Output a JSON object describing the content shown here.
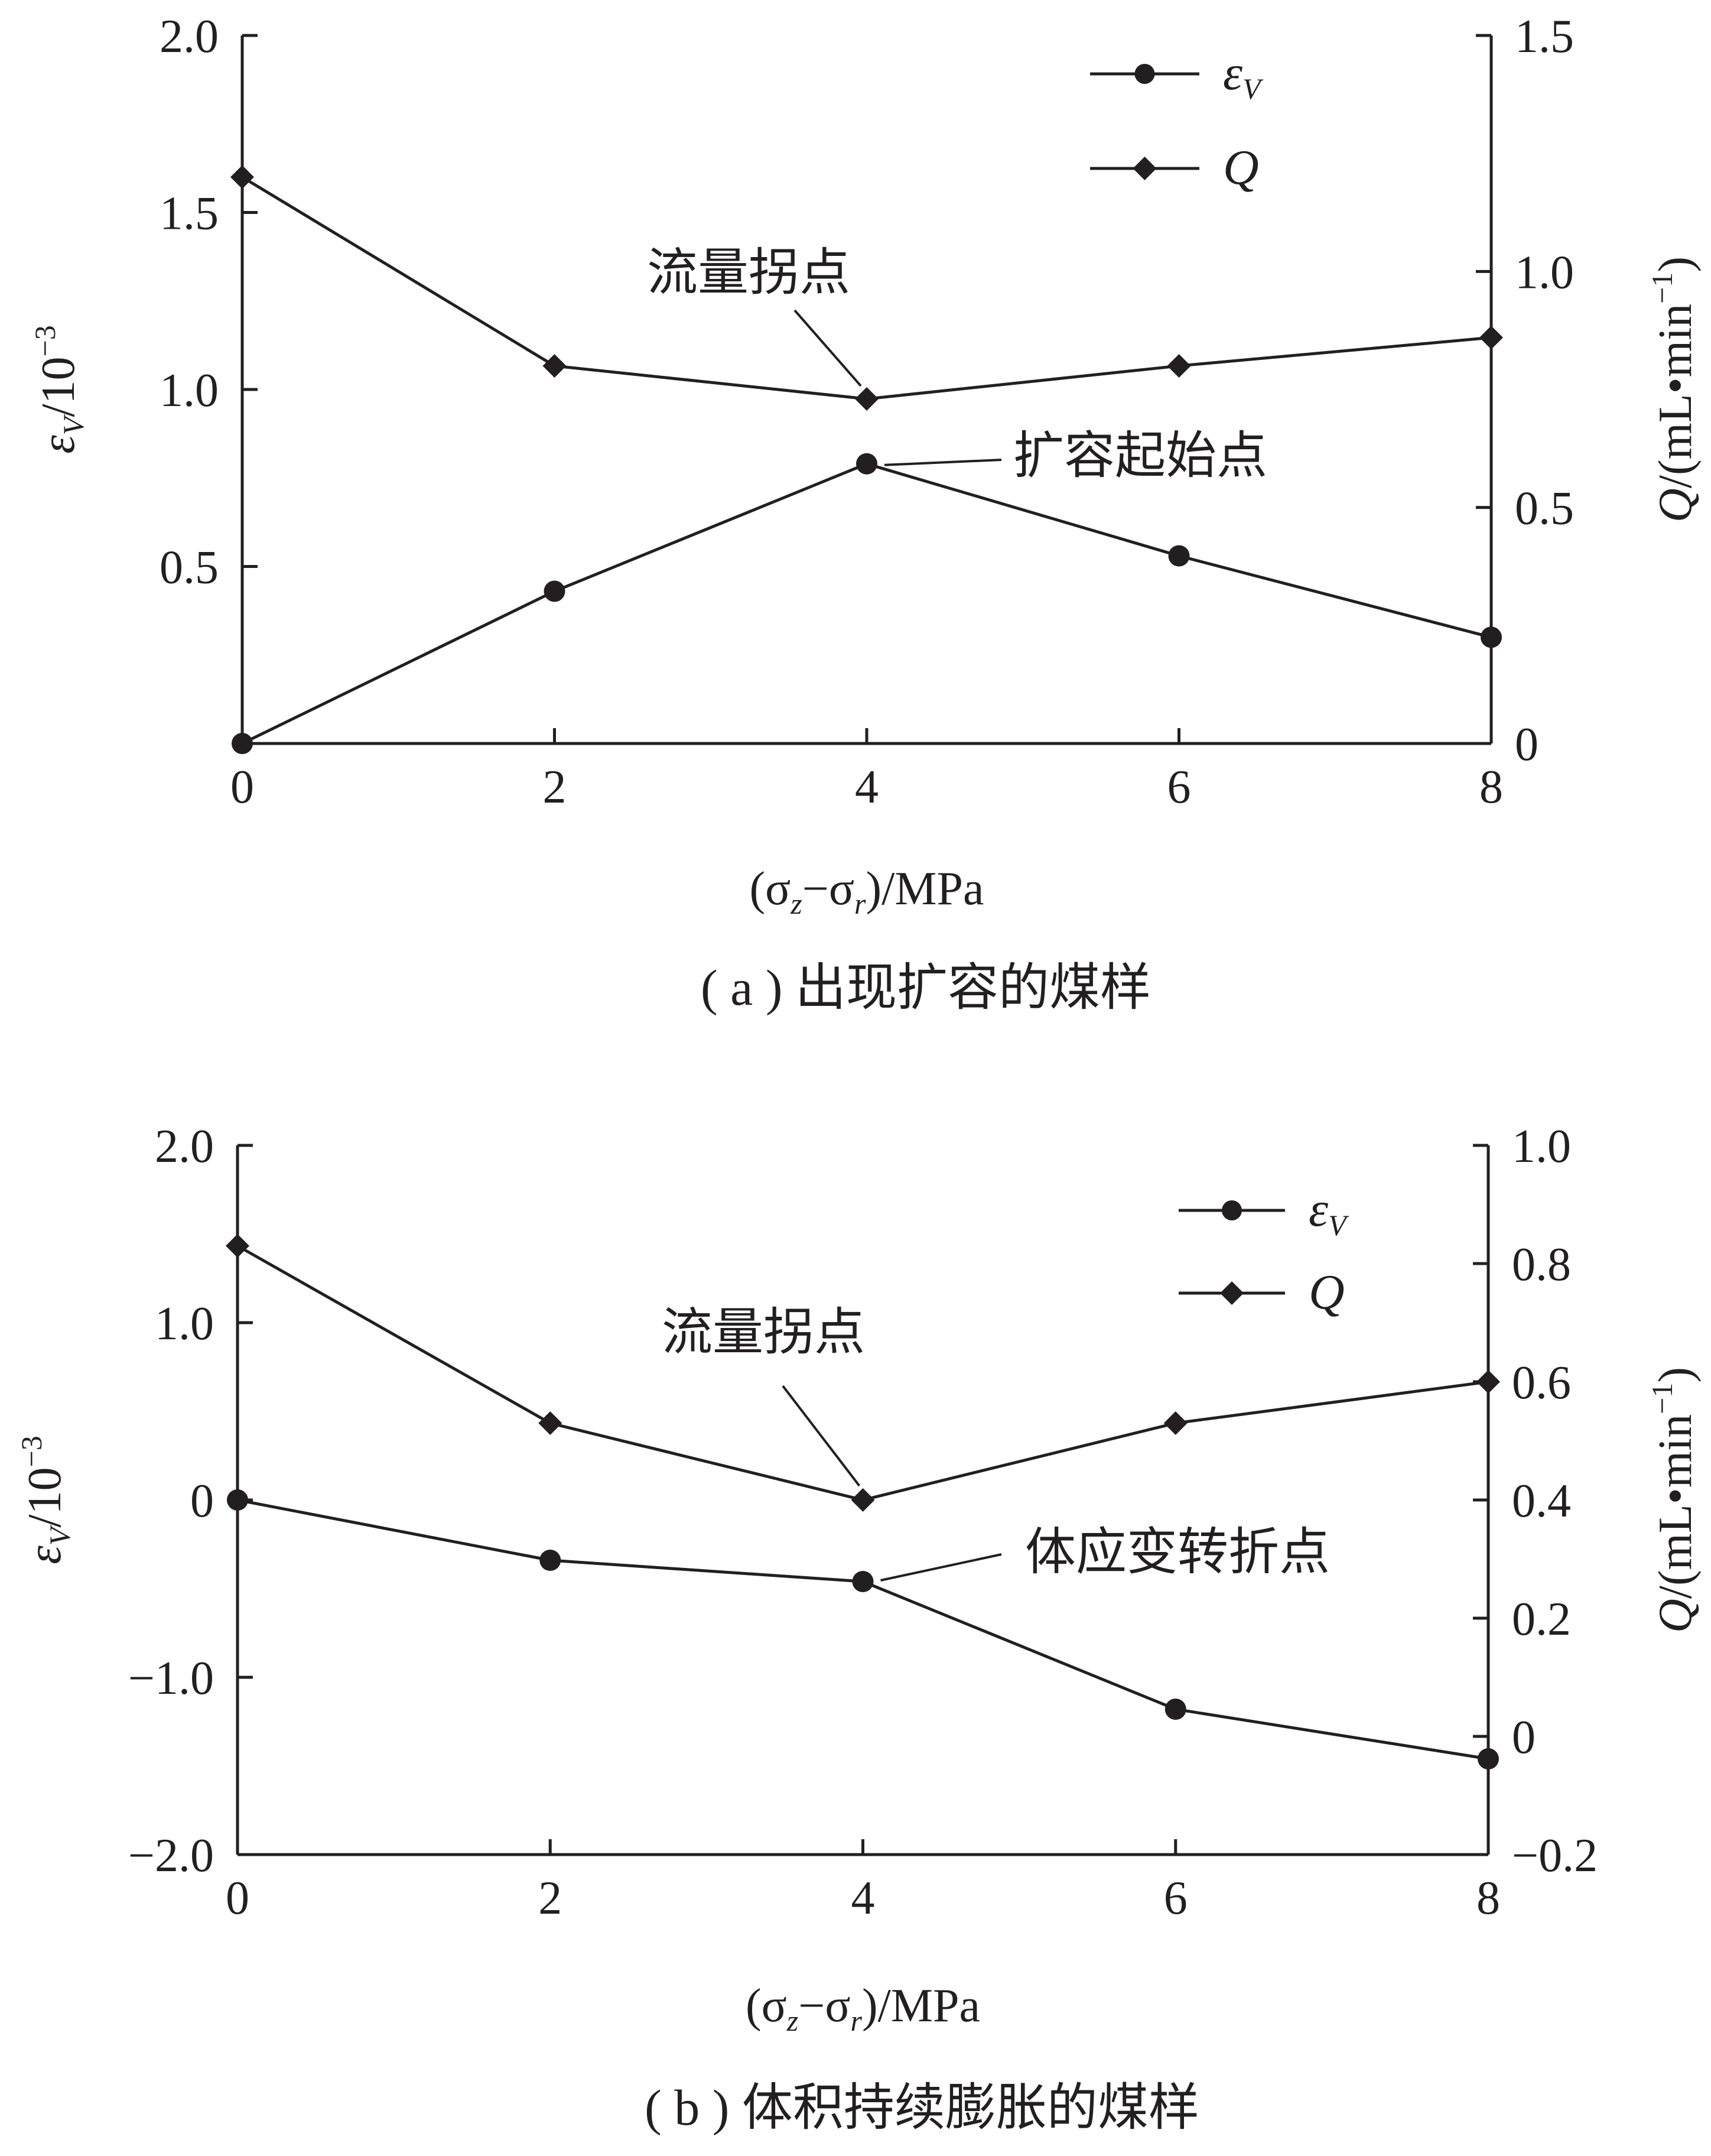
{
  "chart_data": [
    {
      "type": "line",
      "caption": "( a ) 出现扩容的煤样",
      "x": [
        0,
        2,
        4,
        6,
        8
      ],
      "xticks": [
        "0",
        "2",
        "4",
        "6",
        "8"
      ],
      "xlim": [
        0,
        8
      ],
      "y_left": {
        "label_main": "ε",
        "label_sub": "V",
        "label_unit": "/10",
        "label_exp": "−3",
        "lim": [
          0,
          2.0
        ],
        "ticks": [
          0.5,
          1.0,
          1.5,
          2.0
        ],
        "tick_labels": [
          "0.5",
          "1.0",
          "1.5",
          "2.0"
        ]
      },
      "y_right": {
        "label_main": "Q",
        "label_unit": "/(mL•min",
        "label_exp": "−1",
        "label_close": ")",
        "lim": [
          0,
          1.5
        ],
        "ticks": [
          0,
          0.5,
          1.0,
          1.5
        ],
        "tick_labels": [
          "0",
          "0.5",
          "1.0",
          "1.5"
        ]
      },
      "xlabel": {
        "open": "(σ",
        "sub1": "z",
        "mid": "−σ",
        "sub2": "r",
        "close": ")/MPa"
      },
      "series": [
        {
          "name": "εV",
          "name_main": "ε",
          "name_sub": "V",
          "axis": "left",
          "marker": "circle",
          "values": [
            0,
            0.43,
            0.79,
            0.53,
            0.3
          ]
        },
        {
          "name": "Q",
          "name_main": "Q",
          "axis": "right",
          "marker": "diamond",
          "values": [
            1.2,
            0.8,
            0.73,
            0.8,
            0.86
          ]
        }
      ],
      "legend_position": "top-right",
      "annotations": [
        {
          "text": "流量拐点",
          "series": 1,
          "point_index": 2
        },
        {
          "text": "扩容起始点",
          "series": 0,
          "point_index": 2
        }
      ]
    },
    {
      "type": "line",
      "caption": "( b ) 体积持续膨胀的煤样",
      "x": [
        0,
        2,
        4,
        6,
        8
      ],
      "xticks": [
        "0",
        "2",
        "4",
        "6",
        "8"
      ],
      "xlim": [
        0,
        8
      ],
      "y_left": {
        "label_main": "ε",
        "label_sub": "V",
        "label_unit": "/10",
        "label_exp": "−3",
        "lim": [
          -2.0,
          2.0
        ],
        "ticks": [
          -2.0,
          -1.0,
          0,
          1.0,
          2.0
        ],
        "tick_labels": [
          "−2.0",
          "−1.0",
          "0",
          "1.0",
          "2.0"
        ]
      },
      "y_right": {
        "label_main": "Q",
        "label_unit": "/(mL•min",
        "label_exp": "−1",
        "label_close": ")",
        "lim": [
          -0.2,
          1.0
        ],
        "ticks": [
          -0.2,
          0,
          0.2,
          0.4,
          0.6,
          0.8,
          1.0
        ],
        "tick_labels": [
          "−0.2",
          "0",
          "0.2",
          "0.4",
          "0.6",
          "0.8",
          "1.0"
        ]
      },
      "xlabel": {
        "open": "(σ",
        "sub1": "z",
        "mid": "−σ",
        "sub2": "r",
        "close": ")/MPa"
      },
      "series": [
        {
          "name": "εV",
          "name_main": "ε",
          "name_sub": "V",
          "axis": "left",
          "marker": "circle",
          "values": [
            0,
            -0.34,
            -0.46,
            -1.18,
            -1.46
          ]
        },
        {
          "name": "Q",
          "name_main": "Q",
          "axis": "right",
          "marker": "diamond",
          "values": [
            0.83,
            0.53,
            0.4,
            0.53,
            0.6
          ]
        }
      ],
      "legend_position": "top-right",
      "annotations": [
        {
          "text": "流量拐点",
          "series": 1,
          "point_index": 2
        },
        {
          "text": "体应变转折点",
          "series": 0,
          "point_index": 2
        }
      ]
    }
  ],
  "style": {
    "line_color": "#231f20",
    "background": "#ffffff"
  }
}
